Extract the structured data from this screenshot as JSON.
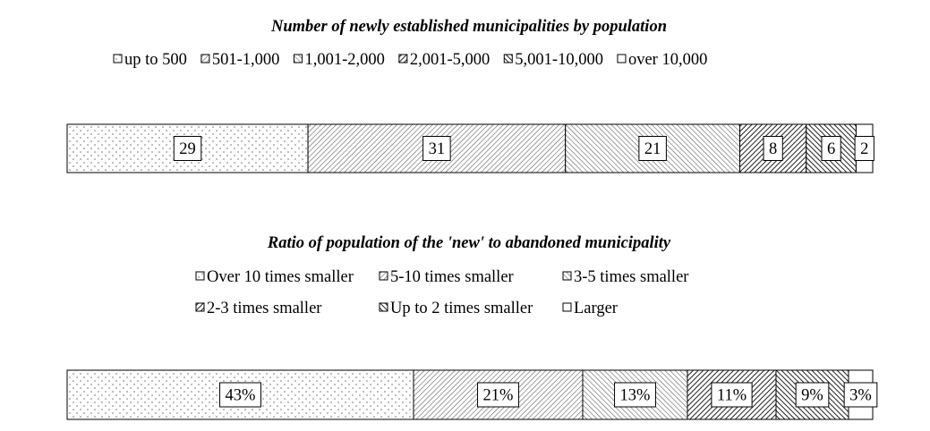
{
  "chart_data": [
    {
      "type": "bar",
      "orientation": "horizontal-stacked",
      "title": "Number of newly established municipalities by population",
      "categories": [
        "up to 500",
        "501-1,000",
        "1,001-2,000",
        "2,001-5,000",
        "5,001-10,000",
        "over 10,000"
      ],
      "values": [
        29,
        31,
        21,
        8,
        6,
        2
      ],
      "labels": [
        "29",
        "31",
        "21",
        "8",
        "6",
        "2"
      ],
      "xlim": [
        0,
        97
      ],
      "legend_position": "top",
      "legend_rows": [
        [
          0,
          1,
          2,
          3,
          4,
          5
        ]
      ]
    },
    {
      "type": "bar",
      "orientation": "horizontal-stacked",
      "title": "Ratio of population of the 'new' to abandoned municipality",
      "categories": [
        "Over 10 times smaller",
        "5-10 times smaller",
        "3-5 times smaller",
        "2-3 times smaller",
        "Up to 2 times smaller",
        "Larger"
      ],
      "values": [
        43,
        21,
        13,
        11,
        9,
        3
      ],
      "labels": [
        "43%",
        "21%",
        "13%",
        "11%",
        "9%",
        "3%"
      ],
      "xlim": [
        0,
        100
      ],
      "legend_position": "top",
      "legend_rows": [
        [
          0,
          1,
          2
        ],
        [
          3,
          4,
          5
        ]
      ]
    }
  ]
}
